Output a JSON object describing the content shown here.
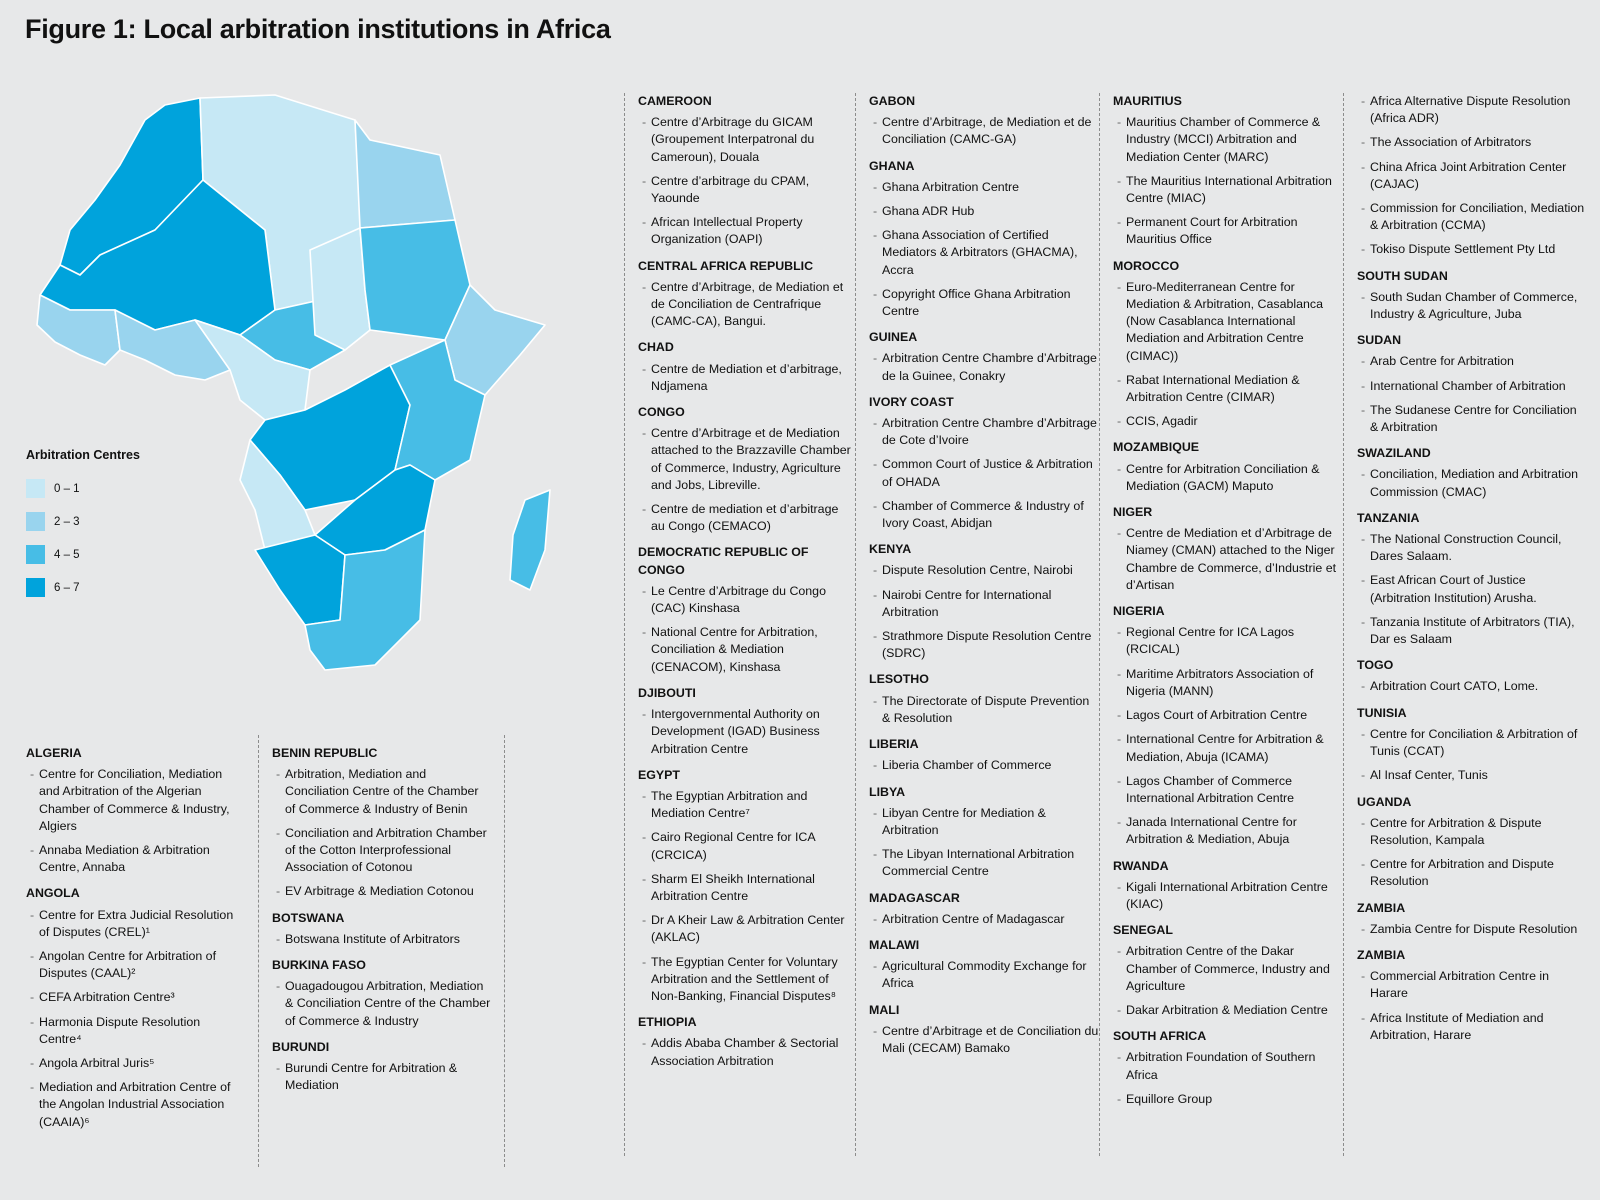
{
  "title": "Figure 1: Local arbitration institutions in Africa",
  "legend": {
    "title": "Arbitration Centres",
    "items": [
      {
        "label": "0 – 1",
        "color": "#c6e8f5"
      },
      {
        "label": "2 – 3",
        "color": "#99d4ee"
      },
      {
        "label": "4 – 5",
        "color": "#47bde6"
      },
      {
        "label": "6 – 7",
        "color": "#00a3dc"
      }
    ]
  },
  "map_regions": [
    {
      "level": 4,
      "shape": "atlantic-north"
    },
    {
      "level": 1,
      "shape": "north-central"
    },
    {
      "level": 2,
      "shape": "north-east"
    },
    {
      "level": 4,
      "shape": "sahel-west"
    },
    {
      "level": 3,
      "shape": "sahel-central"
    },
    {
      "level": 1,
      "shape": "chad"
    },
    {
      "level": 3,
      "shape": "sudan"
    },
    {
      "level": 2,
      "shape": "coast-west"
    },
    {
      "level": 2,
      "shape": "gulf-of-guinea"
    },
    {
      "level": 1,
      "shape": "central"
    },
    {
      "level": 2,
      "shape": "horn"
    },
    {
      "level": 4,
      "shape": "drc"
    },
    {
      "level": 3,
      "shape": "east"
    },
    {
      "level": 1,
      "shape": "angola"
    },
    {
      "level": 4,
      "shape": "zambia-region"
    },
    {
      "level": 4,
      "shape": "south-west"
    },
    {
      "level": 3,
      "shape": "south-east"
    },
    {
      "level": 3,
      "shape": "madagascar"
    }
  ],
  "columns": [
    [
      {
        "name": "ALGERIA",
        "items": [
          "Centre for Conciliation, Mediation and Arbitration of the Algerian Chamber of Commerce & Industry, Algiers",
          "Annaba Mediation & Arbitration Centre, Annaba"
        ]
      },
      {
        "name": "ANGOLA",
        "items": [
          "Centre for Extra Judicial Resolution of Disputes (CREL)¹",
          "Angolan Centre for Arbitration of Disputes (CAAL)²",
          "CEFA Arbitration Centre³",
          "Harmonia Dispute Resolution Centre⁴",
          "Angola Arbitral Juris⁵",
          "Mediation and Arbitration Centre of the Angolan Industrial Association (CAAIA)⁶"
        ]
      }
    ],
    [
      {
        "name": "BENIN REPUBLIC",
        "items": [
          "Arbitration, Mediation and Conciliation Centre of the Chamber of Commerce & Industry of Benin",
          "Conciliation and Arbitration Chamber of the Cotton Interprofessional Association of Cotonou",
          "EV Arbitrage & Mediation Cotonou"
        ]
      },
      {
        "name": "BOTSWANA",
        "items": [
          "Botswana Institute of Arbitrators"
        ]
      },
      {
        "name": "BURKINA FASO",
        "items": [
          "Ouagadougou Arbitration, Mediation & Conciliation Centre of the Chamber of Commerce & Industry"
        ]
      },
      {
        "name": "BURUNDI",
        "items": [
          "Burundi Centre for Arbitration & Mediation"
        ]
      }
    ],
    [
      {
        "name": "CAMEROON",
        "items": [
          "Centre d’Arbitrage du GICAM (Groupement Interpatronal du Cameroun), Douala",
          "Centre d’arbitrage du CPAM, Yaounde",
          "African Intellectual Property Organization (OAPI)"
        ]
      },
      {
        "name": "CENTRAL AFRICA REPUBLIC",
        "items": [
          "Centre d’Arbitrage, de Mediation et de Conciliation de Centrafrique (CAMC-CA), Bangui."
        ]
      },
      {
        "name": "CHAD",
        "items": [
          "Centre de Mediation et d’arbitrage, Ndjamena"
        ]
      },
      {
        "name": "CONGO",
        "items": [
          "Centre d’Arbitrage et de Mediation attached to the Brazzaville Chamber of Commerce, Industry, Agriculture and Jobs, Libreville.",
          "Centre de mediation et d’arbitrage au Congo (CEMACO)"
        ]
      },
      {
        "name": "DEMOCRATIC REPUBLIC OF CONGO",
        "items": [
          "Le Centre d’Arbitrage du Congo (CAC) Kinshasa",
          "National Centre for Arbitration, Conciliation & Mediation (CENACOM), Kinshasa"
        ]
      },
      {
        "name": "DJIBOUTI",
        "items": [
          "Intergovernmental Authority on Development (IGAD) Business Arbitration Centre"
        ]
      },
      {
        "name": "EGYPT",
        "items": [
          "The Egyptian Arbitration and Mediation Centre⁷",
          "Cairo Regional Centre for ICA (CRCICA)",
          "Sharm El Sheikh International Arbitration Centre",
          "Dr A Kheir Law & Arbitration Center (AKLAC)",
          "The Egyptian Center for Voluntary Arbitration and the Settlement of Non-Banking, Financial Disputes⁸"
        ]
      },
      {
        "name": "ETHIOPIA",
        "items": [
          "Addis Ababa Chamber & Sectorial Association Arbitration"
        ]
      }
    ],
    [
      {
        "name": "GABON",
        "items": [
          "Centre d’Arbitrage, de Mediation et de Conciliation (CAMC-GA)"
        ]
      },
      {
        "name": "GHANA",
        "items": [
          "Ghana Arbitration Centre",
          "Ghana ADR Hub",
          "Ghana Association of Certified Mediators & Arbitrators (GHACMA), Accra",
          "Copyright Office Ghana Arbitration Centre"
        ]
      },
      {
        "name": "GUINEA",
        "items": [
          "Arbitration Centre Chambre d’Arbitrage de la Guinee, Conakry"
        ]
      },
      {
        "name": "IVORY COAST",
        "items": [
          "Arbitration Centre Chambre d’Arbitrage de Cote d’Ivoire",
          "Common Court of Justice & Arbitration of OHADA",
          "Chamber of Commerce & Industry of Ivory Coast, Abidjan"
        ]
      },
      {
        "name": "KENYA",
        "items": [
          "Dispute Resolution Centre, Nairobi",
          "Nairobi Centre for International Arbitration",
          "Strathmore Dispute Resolution Centre (SDRC)"
        ]
      },
      {
        "name": "LESOTHO",
        "items": [
          "The Directorate of Dispute Prevention & Resolution"
        ]
      },
      {
        "name": "LIBERIA",
        "items": [
          "Liberia Chamber of Commerce"
        ]
      },
      {
        "name": "LIBYA",
        "items": [
          "Libyan Centre for Mediation & Arbitration",
          "The Libyan International Arbitration Commercial Centre"
        ]
      },
      {
        "name": "MADAGASCAR",
        "items": [
          "Arbitration Centre of Madagascar"
        ]
      },
      {
        "name": "MALAWI",
        "items": [
          "Agricultural Commodity Exchange for Africa"
        ]
      },
      {
        "name": "MALI",
        "items": [
          "Centre d’Arbitrage et de Conciliation du Mali (CECAM) Bamako"
        ]
      }
    ],
    [
      {
        "name": "MAURITIUS",
        "items": [
          "Mauritius Chamber of Commerce & Industry (MCCI) Arbitration and Mediation Center (MARC)",
          "The Mauritius International Arbitration Centre (MIAC)",
          "Permanent Court for Arbitration Mauritius Office"
        ]
      },
      {
        "name": "MOROCCO",
        "items": [
          "Euro-Mediterranean Centre for Mediation & Arbitration, Casablanca (Now Casablanca International Mediation and Arbitration Centre (CIMAC))",
          "Rabat International Mediation & Arbitration Centre (CIMAR)",
          "CCIS, Agadir"
        ]
      },
      {
        "name": "MOZAMBIQUE",
        "items": [
          "Centre for Arbitration Conciliation & Mediation (GACM) Maputo"
        ]
      },
      {
        "name": "NIGER",
        "items": [
          "Centre de Mediation et d’Arbitrage de Niamey (CMAN) attached to the Niger Chambre de Commerce, d’Industrie et d’Artisan"
        ]
      },
      {
        "name": "NIGERIA",
        "items": [
          "Regional Centre for ICA Lagos (RCICAL)",
          "Maritime Arbitrators Association of Nigeria (MANN)",
          "Lagos Court of Arbitration Centre",
          "International Centre for Arbitration & Mediation, Abuja (ICAMA)",
          "Lagos Chamber of Commerce International Arbitration Centre",
          "Janada International Centre for Arbitration & Mediation, Abuja"
        ]
      },
      {
        "name": "RWANDA",
        "items": [
          "Kigali International Arbitration Centre (KIAC)"
        ]
      },
      {
        "name": "SENEGAL",
        "items": [
          "Arbitration Centre of the Dakar Chamber of Commerce, Industry and Agriculture",
          "Dakar Arbitration & Mediation Centre"
        ]
      },
      {
        "name": "SOUTH AFRICA",
        "items": [
          "Arbitration Foundation of Southern Africa",
          "Equillore Group"
        ]
      }
    ],
    [
      {
        "name": "",
        "items": [
          "Africa Alternative Dispute Resolution (Africa ADR)",
          "The Association of Arbitrators",
          "China Africa Joint Arbitration Center (CAJAC)",
          "Commission for Conciliation, Mediation & Arbitration (CCMA)",
          "Tokiso Dispute Settlement Pty Ltd"
        ]
      },
      {
        "name": "SOUTH SUDAN",
        "items": [
          "South Sudan Chamber of Commerce, Industry & Agriculture, Juba"
        ]
      },
      {
        "name": "SUDAN",
        "items": [
          "Arab Centre for Arbitration",
          "International Chamber of Arbitration",
          "The Sudanese Centre for Conciliation & Arbitration"
        ]
      },
      {
        "name": "SWAZILAND",
        "items": [
          "Conciliation, Mediation and Arbitration Commission (CMAC)"
        ]
      },
      {
        "name": "TANZANIA",
        "items": [
          "The National Construction Council, Dares Salaam.",
          "East African Court of Justice (Arbitration Institution) Arusha.",
          "Tanzania Institute of Arbitrators (TIA), Dar es Salaam"
        ]
      },
      {
        "name": "TOGO",
        "items": [
          "Arbitration Court CATO, Lome."
        ]
      },
      {
        "name": "TUNISIA",
        "items": [
          "Centre for Conciliation & Arbitration of Tunis (CCAT)",
          "Al Insaf Center, Tunis"
        ]
      },
      {
        "name": "UGANDA",
        "items": [
          "Centre for Arbitration & Dispute Resolution, Kampala",
          "Centre for Arbitration and Dispute Resolution"
        ]
      },
      {
        "name": "ZAMBIA",
        "items": [
          "Zambia Centre for Dispute Resolution"
        ]
      },
      {
        "name": "ZAMBIA",
        "items": [
          "Commercial Arbitration Centre in Harare",
          "Africa Institute of Mediation and Arbitration, Harare"
        ]
      }
    ]
  ]
}
